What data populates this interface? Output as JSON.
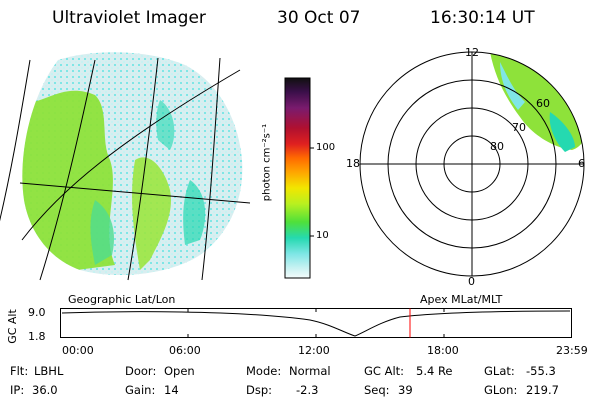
{
  "header": {
    "instrument": "Ultraviolet Imager",
    "date": "30 Oct 07",
    "time": "16:30:14 UT"
  },
  "colorbar": {
    "unit_label": "photon cm⁻²s⁻¹",
    "ticks": [
      "100",
      "10"
    ],
    "colors": [
      "#101010",
      "#3b0f4a",
      "#7a1b6e",
      "#b01030",
      "#e02020",
      "#ff6a00",
      "#ffa500",
      "#f2e600",
      "#b8f020",
      "#4fe03a",
      "#25d9b0",
      "#7fe6e6",
      "#c8f2f2",
      "#f4fbfb"
    ]
  },
  "polar_plot": {
    "mlt_labels": {
      "top": "12",
      "left": "18",
      "right": "6",
      "bottom": "0"
    },
    "lat_labels": [
      "80",
      "70",
      "60"
    ]
  },
  "image_labels": {
    "geo": "Geographic Lat/Lon",
    "apex": "Apex MLat/MLT"
  },
  "altitude_strip": {
    "ylabel": "GC Alt",
    "yticks": [
      "9.0",
      "1.8"
    ],
    "xticks": [
      "00:00",
      "06:00",
      "12:00",
      "18:00",
      "23:59"
    ],
    "marker_color": "#ff0000"
  },
  "status": {
    "filter_label": "Flt:",
    "filter_value": "LBHL",
    "door_label": "Door:",
    "door_value": "Open",
    "mode_label": "Mode:",
    "mode_value": "Normal",
    "gcalt_label": "GC Alt:",
    "gcalt_value": "5.4 Re",
    "glat_label": "GLat:",
    "glat_value": "-55.3",
    "ip_label": "IP:",
    "ip_value": "36.0",
    "gain_label": "Gain:",
    "gain_value": "14",
    "dsp_label": "Dsp:",
    "dsp_value": "-2.3",
    "seq_label": "Seq:",
    "seq_value": "39",
    "glon_label": "GLon:",
    "glon_value": "219.7"
  }
}
